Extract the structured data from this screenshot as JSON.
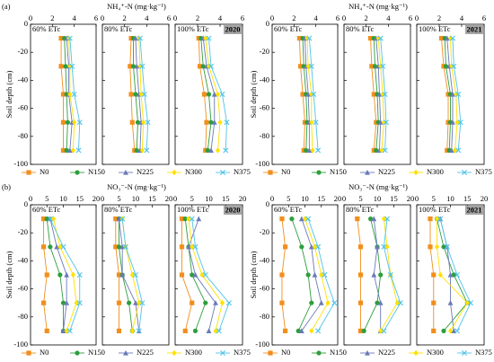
{
  "chart_data": [
    {
      "type": "line",
      "panel_label": "(a)",
      "title": "NH₄⁺-N (mg·kg⁻¹)",
      "ylabel": "Soil depth (cm)",
      "year": "2020",
      "xlim": [
        0,
        6
      ],
      "xticks": [
        0,
        2,
        4,
        6
      ],
      "ylim": [
        -100,
        0
      ],
      "yticks": [
        0,
        -20,
        -40,
        -60,
        -80,
        -100
      ],
      "depths": [
        -10,
        -30,
        -50,
        -70,
        -90
      ],
      "series": [
        {
          "name": "N0",
          "color": "#f28e1c",
          "marker": "square"
        },
        {
          "name": "N150",
          "color": "#2e9e3e",
          "marker": "circle"
        },
        {
          "name": "N225",
          "color": "#6a7ab8",
          "marker": "triangle"
        },
        {
          "name": "N300",
          "color": "#ffe100",
          "marker": "diamond"
        },
        {
          "name": "N375",
          "color": "#4fc3e8",
          "marker": "x"
        }
      ],
      "panels": [
        {
          "label": "60% ETc",
          "values": [
            [
              2.8,
              2.8,
              3.0,
              3.0,
              3.0
            ],
            [
              3.1,
              3.2,
              3.3,
              3.4,
              3.3
            ],
            [
              3.3,
              3.5,
              3.5,
              3.8,
              3.6
            ],
            [
              3.5,
              3.6,
              3.6,
              4.0,
              3.9
            ],
            [
              3.6,
              3.8,
              4.0,
              4.5,
              4.4
            ]
          ]
        },
        {
          "label": "80% ETc",
          "values": [
            [
              2.6,
              2.5,
              2.6,
              2.7,
              2.9
            ],
            [
              2.8,
              2.8,
              3.0,
              3.2,
              3.1
            ],
            [
              3.0,
              3.1,
              3.3,
              3.5,
              3.4
            ],
            [
              3.3,
              3.4,
              3.5,
              3.7,
              3.6
            ],
            [
              3.4,
              3.6,
              3.8,
              4.1,
              4.0
            ]
          ]
        },
        {
          "label": "100% ETc",
          "values": [
            [
              2.1,
              2.2,
              2.6,
              2.8,
              2.7
            ],
            [
              2.3,
              2.5,
              3.0,
              3.2,
              2.9
            ],
            [
              2.5,
              2.8,
              3.5,
              3.5,
              3.2
            ],
            [
              2.7,
              3.0,
              3.8,
              4.0,
              3.8
            ],
            [
              3.0,
              3.2,
              4.2,
              4.6,
              4.5
            ]
          ]
        }
      ]
    },
    {
      "type": "line",
      "title": "NH₄⁺-N (mg·kg⁻¹)",
      "ylabel": "Soil depth (cm)",
      "year": "2021",
      "xlim": [
        0,
        6
      ],
      "xticks": [
        0,
        2,
        4,
        6
      ],
      "ylim": [
        -100,
        0
      ],
      "yticks": [
        0,
        -20,
        -40,
        -60,
        -80,
        -100
      ],
      "depths": [
        -10,
        -30,
        -50,
        -70,
        -90
      ],
      "series": [
        {
          "name": "N0",
          "color": "#f28e1c",
          "marker": "square"
        },
        {
          "name": "N150",
          "color": "#2e9e3e",
          "marker": "circle"
        },
        {
          "name": "N225",
          "color": "#6a7ab8",
          "marker": "triangle"
        },
        {
          "name": "N300",
          "color": "#ffe100",
          "marker": "diamond"
        },
        {
          "name": "N375",
          "color": "#4fc3e8",
          "marker": "x"
        }
      ],
      "panels": [
        {
          "label": "60% ETc",
          "values": [
            [
              2.5,
              2.6,
              2.8,
              3.0,
              2.9
            ],
            [
              2.8,
              2.9,
              3.1,
              3.2,
              3.1
            ],
            [
              3.0,
              3.1,
              3.3,
              3.4,
              3.4
            ],
            [
              3.2,
              3.3,
              3.6,
              3.6,
              3.7
            ],
            [
              3.4,
              3.6,
              3.8,
              4.0,
              4.2
            ]
          ]
        },
        {
          "label": "80% ETc",
          "values": [
            [
              2.4,
              2.5,
              2.7,
              2.9,
              2.7
            ],
            [
              2.7,
              2.8,
              3.0,
              3.1,
              2.9
            ],
            [
              2.9,
              3.1,
              3.2,
              3.3,
              3.2
            ],
            [
              3.1,
              3.3,
              3.5,
              3.6,
              3.4
            ],
            [
              3.3,
              3.5,
              3.7,
              3.8,
              3.7
            ]
          ]
        },
        {
          "label": "100% ETc",
          "values": [
            [
              2.2,
              2.4,
              2.8,
              2.8,
              2.7
            ],
            [
              2.5,
              2.6,
              3.0,
              3.0,
              2.9
            ],
            [
              2.7,
              2.9,
              3.2,
              3.2,
              3.1
            ],
            [
              3.0,
              3.1,
              3.5,
              3.6,
              3.4
            ],
            [
              3.2,
              3.3,
              3.7,
              3.9,
              3.7
            ]
          ]
        }
      ]
    },
    {
      "type": "line",
      "panel_label": "(b)",
      "title": "NO₃⁻-N (mg·kg⁻¹)",
      "ylabel": "Soil depth (cm)",
      "year": "2020",
      "xlim": [
        0,
        20
      ],
      "xticks": [
        0,
        5,
        10,
        15,
        20
      ],
      "ylim": [
        -100,
        0
      ],
      "yticks": [
        0,
        -20,
        -40,
        -60,
        -80,
        -100
      ],
      "depths": [
        -10,
        -30,
        -50,
        -70,
        -90
      ],
      "series": [
        {
          "name": "N0",
          "color": "#f28e1c",
          "marker": "square"
        },
        {
          "name": "N150",
          "color": "#2e9e3e",
          "marker": "circle"
        },
        {
          "name": "N225",
          "color": "#6a7ab8",
          "marker": "triangle"
        },
        {
          "name": "N300",
          "color": "#ffe100",
          "marker": "diamond"
        },
        {
          "name": "N375",
          "color": "#4fc3e8",
          "marker": "x"
        }
      ],
      "panels": [
        {
          "label": "60% ETc",
          "values": [
            [
              4,
              4,
              5,
              4,
              5
            ],
            [
              5,
              6,
              9,
              10,
              10
            ],
            [
              6,
              8,
              11,
              11,
              10
            ],
            [
              7,
              9,
              13,
              14,
              11
            ],
            [
              6,
              10,
              15,
              15,
              12
            ]
          ]
        },
        {
          "label": "80% ETc",
          "values": [
            [
              4,
              4,
              5,
              5,
              5
            ],
            [
              5,
              5,
              6,
              8,
              9
            ],
            [
              5,
              6,
              6,
              10,
              11
            ],
            [
              6,
              7,
              9,
              11,
              9
            ],
            [
              6,
              7,
              10,
              12,
              11
            ]
          ]
        },
        {
          "label": "100% ETc",
          "values": [
            [
              2,
              2,
              2,
              5,
              3
            ],
            [
              3,
              4,
              5,
              9,
              6
            ],
            [
              7,
              4,
              6,
              12,
              10
            ],
            [
              4,
              5,
              8,
              14,
              12
            ],
            [
              5,
              6,
              9,
              16,
              13
            ]
          ]
        }
      ]
    },
    {
      "type": "line",
      "title": "NO₃⁻-N (mg·kg⁻¹)",
      "ylabel": "Soil depth (cm)",
      "year": "2021",
      "xlim": [
        0,
        20
      ],
      "xticks": [
        0,
        5,
        10,
        15,
        20
      ],
      "ylim": [
        -100,
        0
      ],
      "yticks": [
        0,
        -20,
        -40,
        -60,
        -80,
        -100
      ],
      "depths": [
        -10,
        -30,
        -50,
        -70,
        -90
      ],
      "series": [
        {
          "name": "N0",
          "color": "#f28e1c",
          "marker": "square"
        },
        {
          "name": "N150",
          "color": "#2e9e3e",
          "marker": "circle"
        },
        {
          "name": "N225",
          "color": "#6a7ab8",
          "marker": "triangle"
        },
        {
          "name": "N300",
          "color": "#ffe100",
          "marker": "diamond"
        },
        {
          "name": "N375",
          "color": "#4fc3e8",
          "marker": "x"
        }
      ],
      "panels": [
        {
          "label": "60% ETc",
          "values": [
            [
              3,
              4,
              3,
              3,
              4
            ],
            [
              6,
              9,
              11,
              12,
              8
            ],
            [
              9,
              12,
              13,
              15,
              9
            ],
            [
              10,
              13,
              15,
              17,
              12
            ],
            [
              11,
              14,
              16,
              19,
              14
            ]
          ]
        },
        {
          "label": "80% ETc",
          "values": [
            [
              4,
              5,
              5,
              5,
              5
            ],
            [
              8,
              10,
              11,
              10,
              6
            ],
            [
              9,
              10,
              9,
              11,
              11
            ],
            [
              12,
              13,
              14,
              16,
              11
            ],
            [
              13,
              12,
              14,
              17,
              12
            ]
          ]
        },
        {
          "label": "100% ETc",
          "values": [
            [
              4,
              4,
              5,
              5,
              5
            ],
            [
              6,
              8,
              11,
              15,
              8
            ],
            [
              7,
              9,
              10,
              10,
              11
            ],
            [
              6,
              6,
              7,
              15,
              10
            ],
            [
              7,
              9,
              12,
              16,
              12
            ]
          ]
        }
      ]
    }
  ]
}
